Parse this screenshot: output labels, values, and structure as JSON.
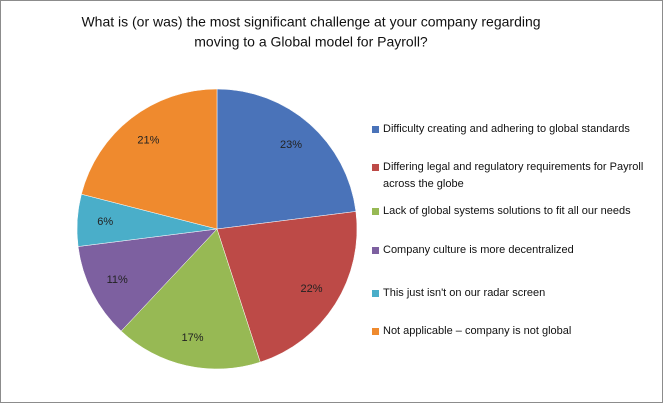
{
  "chart_data": {
    "type": "pie",
    "title": [
      "What is (or was) the most significant challenge at your company regarding",
      "moving to a Global model for Payroll?"
    ],
    "categories": [
      "Difficulty creating and adhering to global standards",
      "Differing legal and regulatory requirements for Payroll across the globe",
      "Lack of global systems solutions to fit all our needs",
      "Company culture is more decentralized",
      "This just isn't on our radar screen",
      "Not applicable – company is not global"
    ],
    "values": [
      23,
      22,
      17,
      11,
      6,
      21
    ],
    "value_labels": [
      "23%",
      "22%",
      "17%",
      "11%",
      "6%",
      "21%"
    ],
    "colors": [
      "#4a73b9",
      "#bd4a47",
      "#97b954",
      "#7d60a0",
      "#4aaec9",
      "#ef8a2e"
    ],
    "legend": "right"
  }
}
